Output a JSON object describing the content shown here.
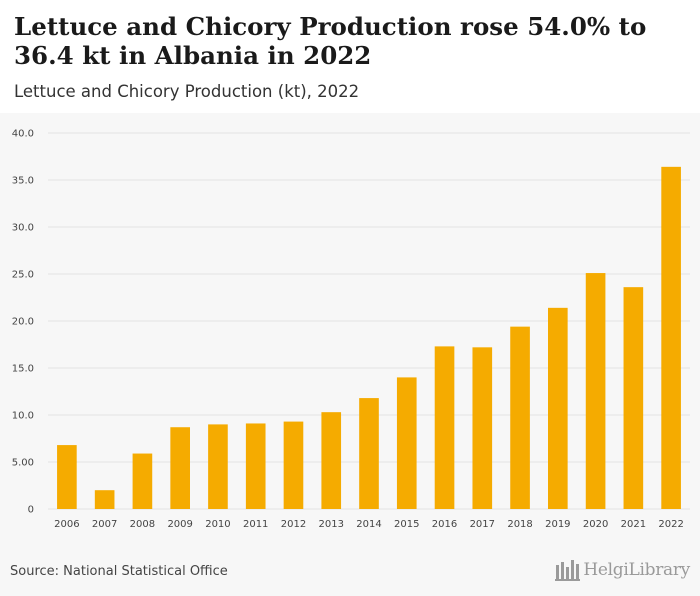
{
  "header": {
    "title": "Lettuce and Chicory Production rose 54.0% to 36.4 kt in Albania in 2022",
    "subtitle": "Lettuce and Chicory Production (kt), 2022"
  },
  "footer": {
    "source": "Source: National Statistical Office",
    "brand": "HelgiLibrary"
  },
  "colors": {
    "bar": "#f5ab00",
    "grid": "#e3e3e3",
    "background": "#f7f7f7"
  },
  "chart_data": {
    "type": "bar",
    "title": "Lettuce and Chicory Production (kt), 2022",
    "xlabel": "",
    "ylabel": "",
    "categories": [
      "2006",
      "2007",
      "2008",
      "2009",
      "2010",
      "2011",
      "2012",
      "2013",
      "2014",
      "2015",
      "2016",
      "2017",
      "2018",
      "2019",
      "2020",
      "2021",
      "2022"
    ],
    "values": [
      6.8,
      2.0,
      5.9,
      8.7,
      9.0,
      9.1,
      9.3,
      10.3,
      11.8,
      14.0,
      17.3,
      17.2,
      19.4,
      21.4,
      25.1,
      23.6,
      36.4
    ],
    "ylim": [
      0,
      40
    ],
    "yticks": [
      "0",
      "5.00",
      "10.0",
      "15.0",
      "20.0",
      "25.0",
      "30.0",
      "35.0",
      "40.0"
    ],
    "ytick_values": [
      0,
      5,
      10,
      15,
      20,
      25,
      30,
      35,
      40
    ],
    "grid": true,
    "legend": "none"
  }
}
